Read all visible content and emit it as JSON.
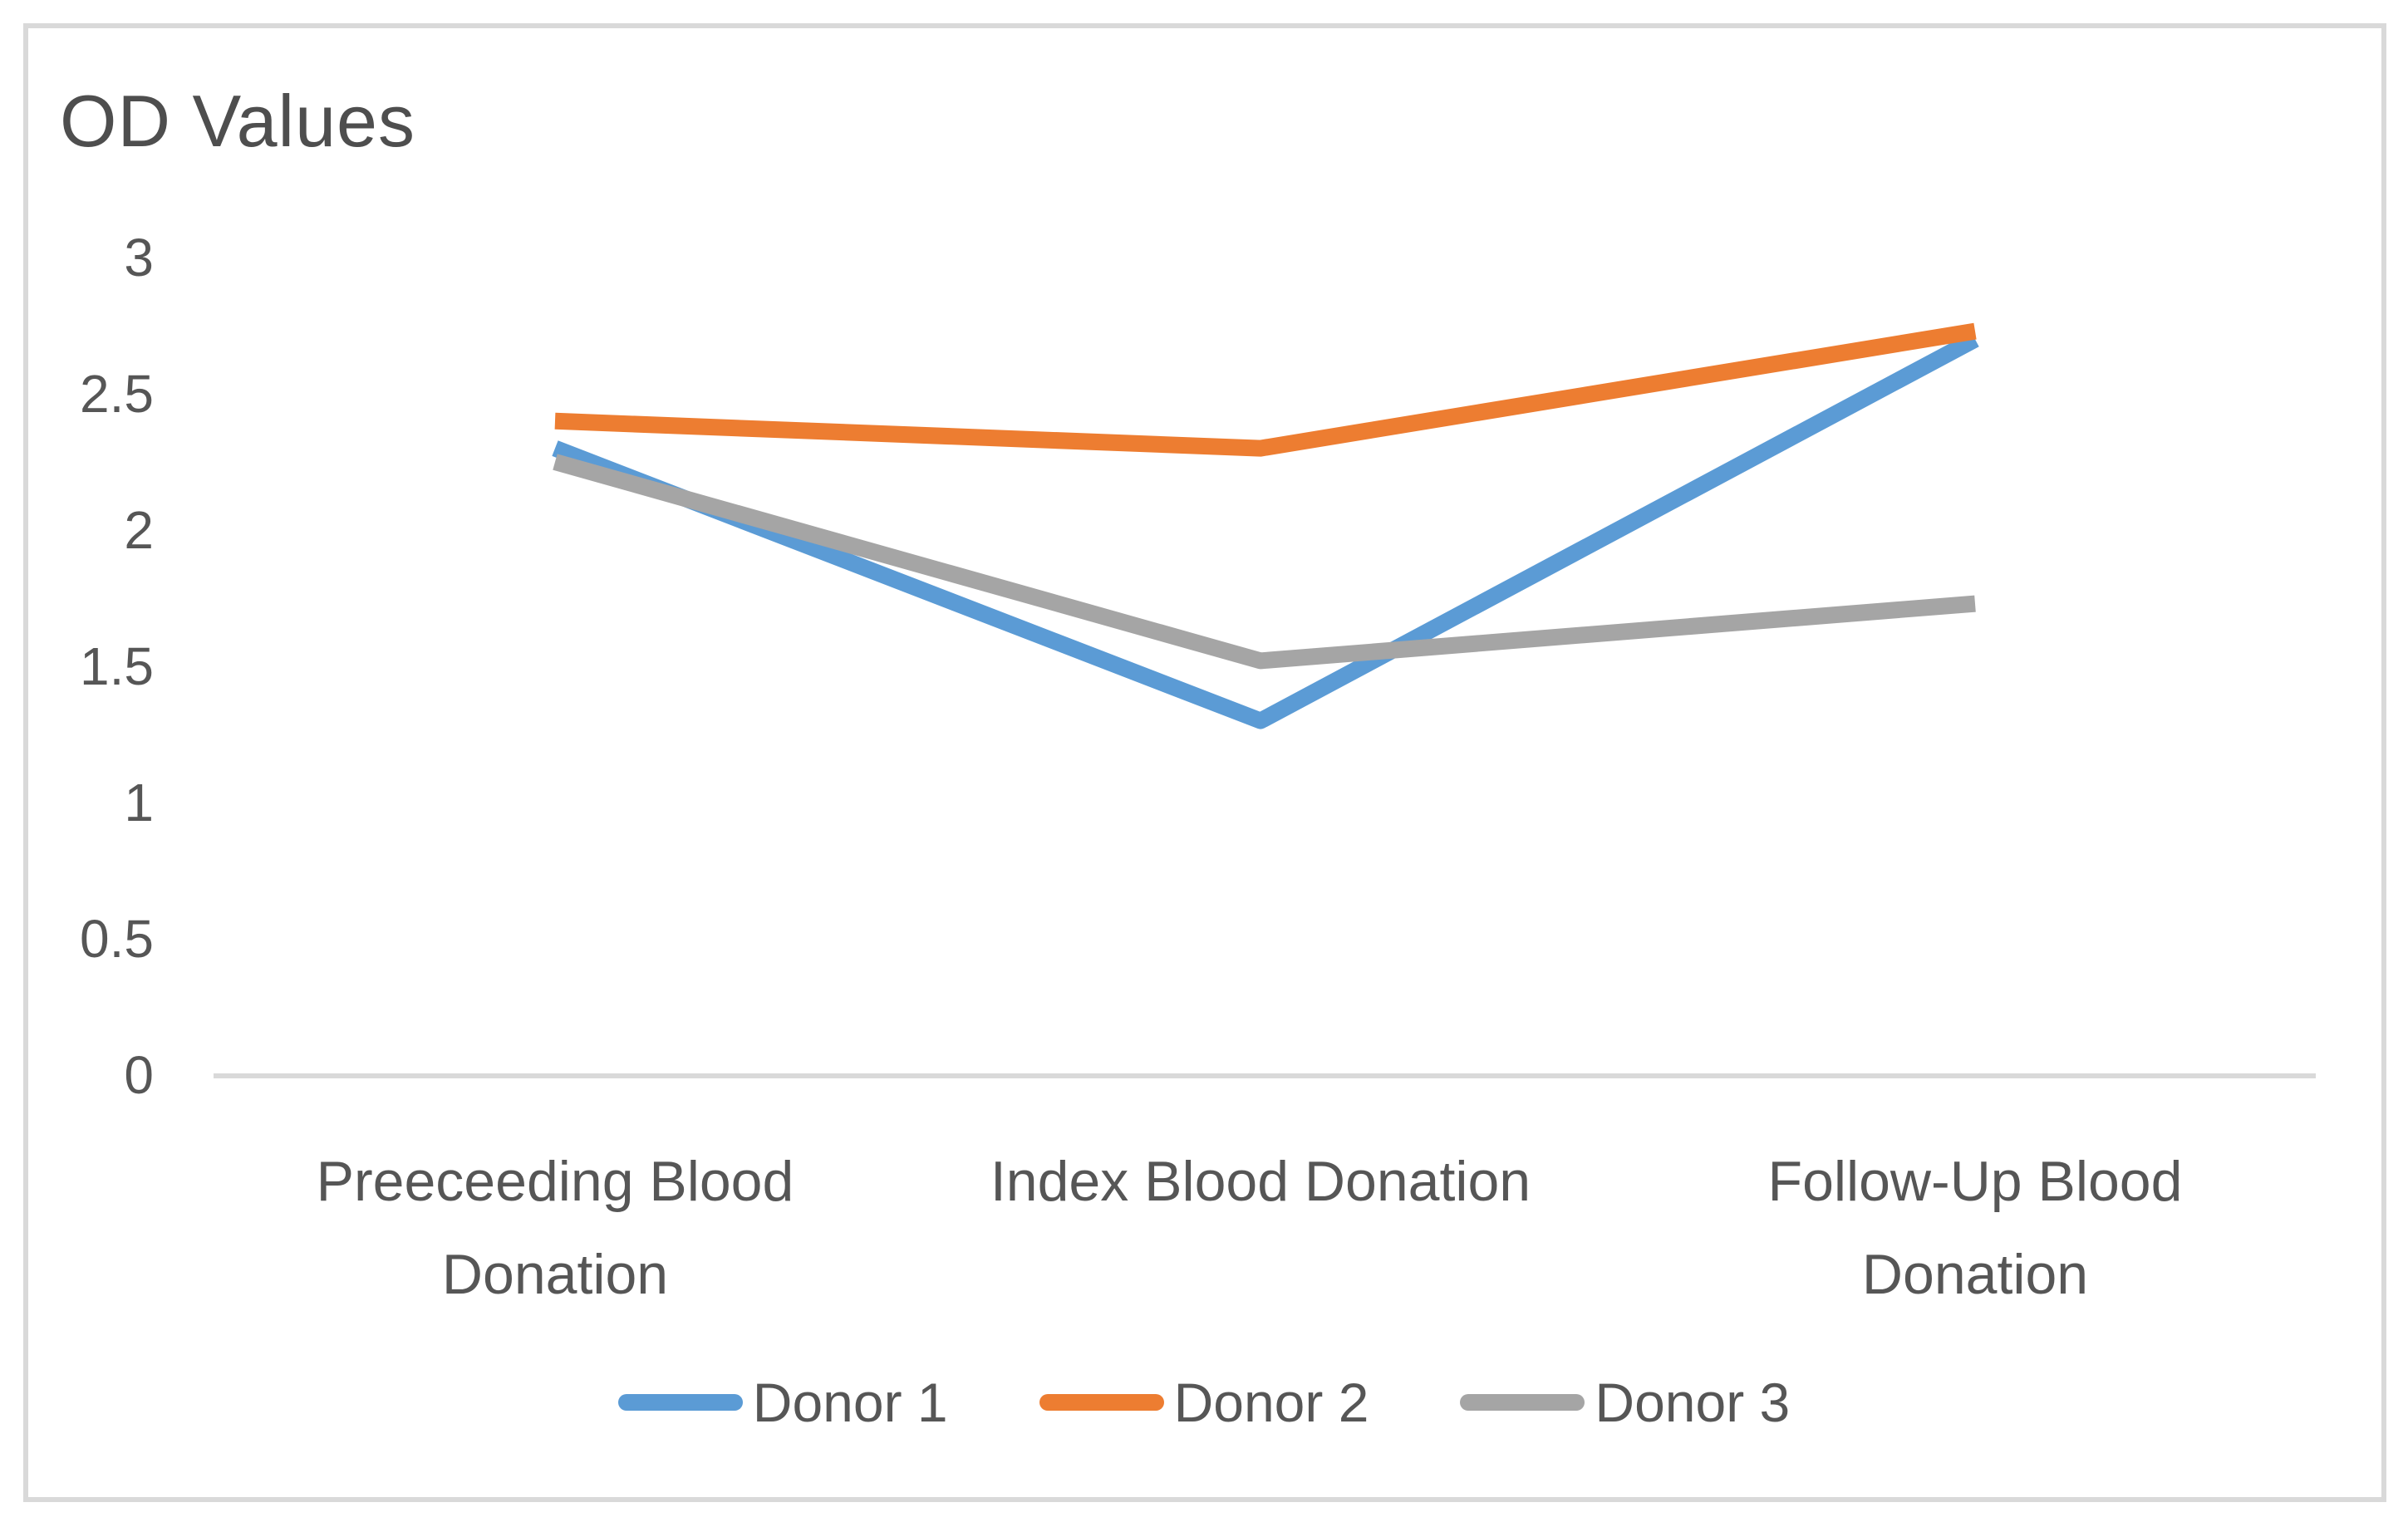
{
  "chart_data": {
    "type": "line",
    "title": "OD Values",
    "categories": [
      "Preeceeding Blood Donation",
      "Index Blood Donation",
      "Follow-Up Blood Donation"
    ],
    "series": [
      {
        "name": "Donor 1",
        "color": "#5B9BD5",
        "values": [
          2.3,
          1.3,
          2.7
        ]
      },
      {
        "name": "Donor 2",
        "color": "#ED7D31",
        "values": [
          2.4,
          2.3,
          2.73
        ]
      },
      {
        "name": "Donor 3",
        "color": "#A5A5A5",
        "values": [
          2.25,
          1.52,
          1.73
        ]
      }
    ],
    "ylim": [
      0,
      3
    ],
    "yticks": [
      3,
      2.5,
      2,
      1.5,
      1,
      0.5,
      0
    ],
    "xlabel": "",
    "ylabel": "",
    "grid": false,
    "legend_position": "bottom",
    "axis_line_color": "#D9D9D9"
  },
  "xaxis": {
    "categories": [
      {
        "line1": "Preeceeding Blood",
        "line2": "Donation"
      },
      {
        "line1": "Index Blood Donation",
        "line2": ""
      },
      {
        "line1": "Follow-Up Blood",
        "line2": "Donation"
      }
    ]
  }
}
